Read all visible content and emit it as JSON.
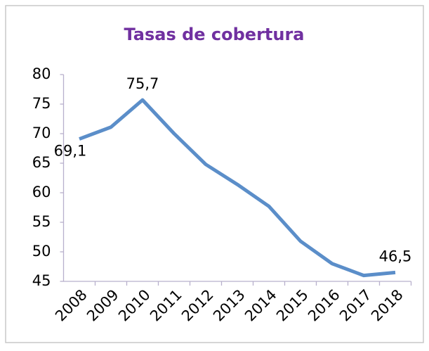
{
  "chart_data": {
    "type": "line",
    "title": "Tasas de cobertura",
    "categories": [
      "2008",
      "2009",
      "2010",
      "2011",
      "2012",
      "2013",
      "2014",
      "2015",
      "2016",
      "2017",
      "2018"
    ],
    "series": [
      {
        "color": "#5b8ec9",
        "values": [
          69.1,
          71.1,
          75.7,
          70,
          64.8,
          61.4,
          57.7,
          51.8,
          48,
          46,
          46.5
        ],
        "value_labels": [
          "69,1",
          null,
          "75,7",
          null,
          null,
          null,
          null,
          null,
          null,
          null,
          "46,5"
        ]
      }
    ],
    "ylim": [
      45,
      80
    ],
    "yticks": [
      45,
      50,
      55,
      60,
      65,
      70,
      75,
      80
    ],
    "grid": false
  }
}
